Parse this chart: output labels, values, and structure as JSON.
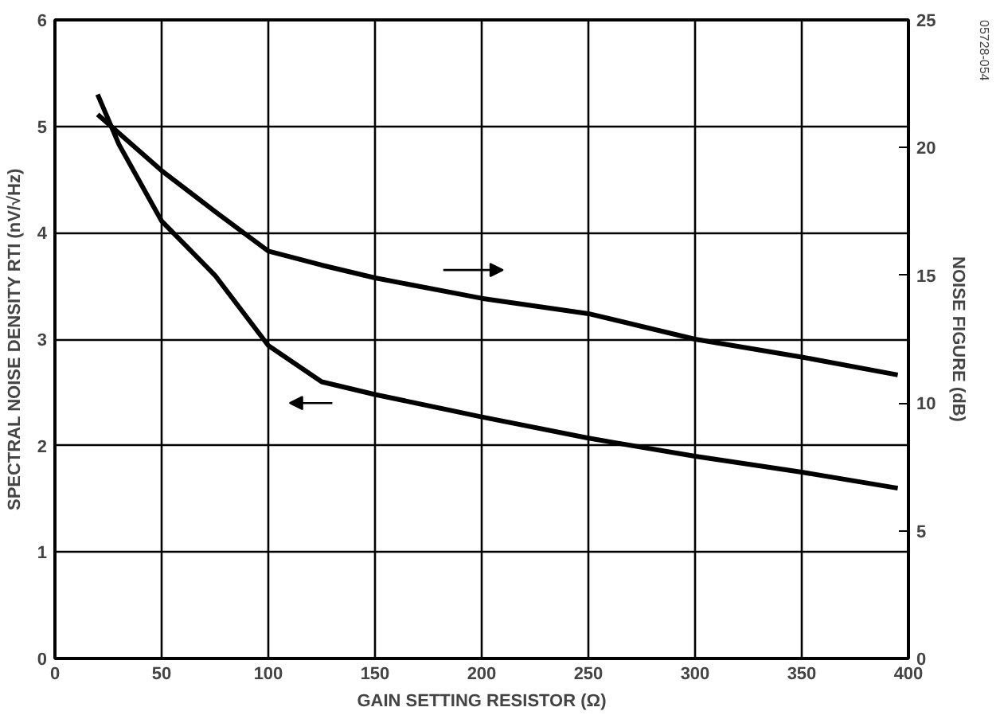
{
  "chart_data": {
    "type": "line",
    "xlabel": "GAIN SETTING RESISTOR (Ω)",
    "ylabel": "SPECTRAL NOISE DENSITY RTI (nV/√Hz)",
    "y2label": "NOISE FIGURE (dB)",
    "x": [
      20,
      30,
      50,
      75,
      100,
      125,
      150,
      200,
      250,
      300,
      350,
      395
    ],
    "series": [
      {
        "color": "#000000",
        "values": [
          5.3,
          4.83,
          4.11,
          3.6,
          2.94,
          2.6,
          2.48,
          2.27,
          2.07,
          1.9,
          1.75,
          1.6
        ]
      },
      {
        "color": "#000000",
        "axis": "y2",
        "x": [
          20,
          50,
          75,
          100,
          125,
          150,
          200,
          250,
          300,
          350,
          395
        ],
        "values": [
          21.3,
          19.1,
          17.5,
          15.95,
          15.4,
          14.9,
          14.1,
          13.5,
          12.5,
          11.8,
          11.1
        ]
      }
    ],
    "xlim": [
      0,
      400
    ],
    "xticks": [
      0,
      50,
      100,
      150,
      200,
      250,
      300,
      350,
      400
    ],
    "ylim": [
      0,
      6
    ],
    "yticks": [
      0,
      1,
      2,
      3,
      4,
      5,
      6
    ],
    "y2lim": [
      0,
      25
    ],
    "y2ticks": [
      0,
      5,
      10,
      15,
      20,
      25
    ],
    "grid": true,
    "annotations": [
      "05728-054"
    ]
  }
}
